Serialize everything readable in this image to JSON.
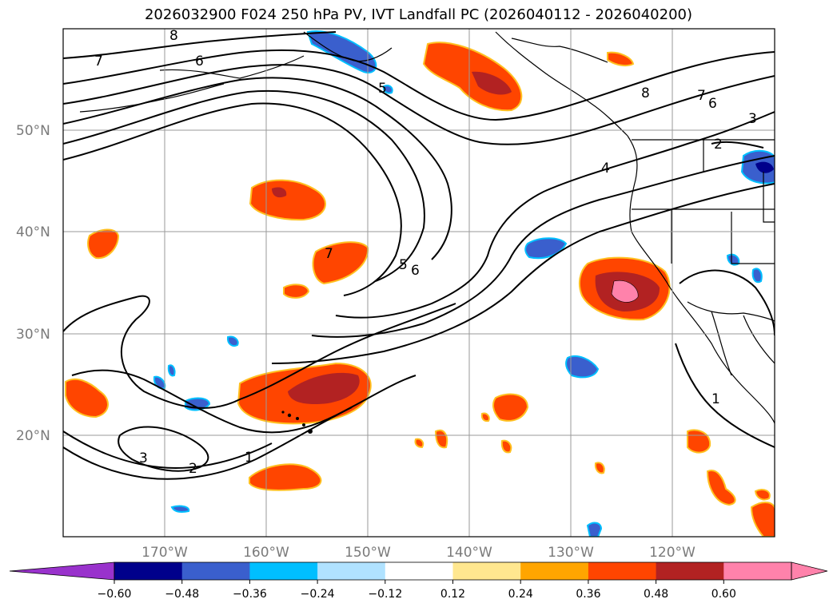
{
  "title": "2026032900 F024 250 hPa PV, IVT Landfall PC (2026040112 - 2026040200)",
  "map": {
    "lat_labels": [
      "50°N",
      "40°N",
      "30°N",
      "20°N"
    ],
    "lon_labels": [
      "170°W",
      "160°W",
      "150°W",
      "140°W",
      "130°W",
      "120°W"
    ],
    "pv_contour_labels": [
      "8",
      "7",
      "6",
      "5",
      "5",
      "6",
      "8",
      "7",
      "6",
      "3",
      "2",
      "4",
      "7",
      "3",
      "2",
      "1",
      "1"
    ]
  },
  "colorbar": {
    "ticks": [
      "−0.60",
      "−0.48",
      "−0.36",
      "−0.24",
      "−0.12",
      "0.12",
      "0.24",
      "0.36",
      "0.48",
      "0.60"
    ],
    "colors": [
      "#9932cc",
      "#00008b",
      "#3a5fcd",
      "#00bfff",
      "#b0e2ff",
      "#ffffff",
      "#ffe78f",
      "#ffa500",
      "#ff4500",
      "#b22222",
      "#ff82ab",
      "#ff82ab"
    ]
  }
}
